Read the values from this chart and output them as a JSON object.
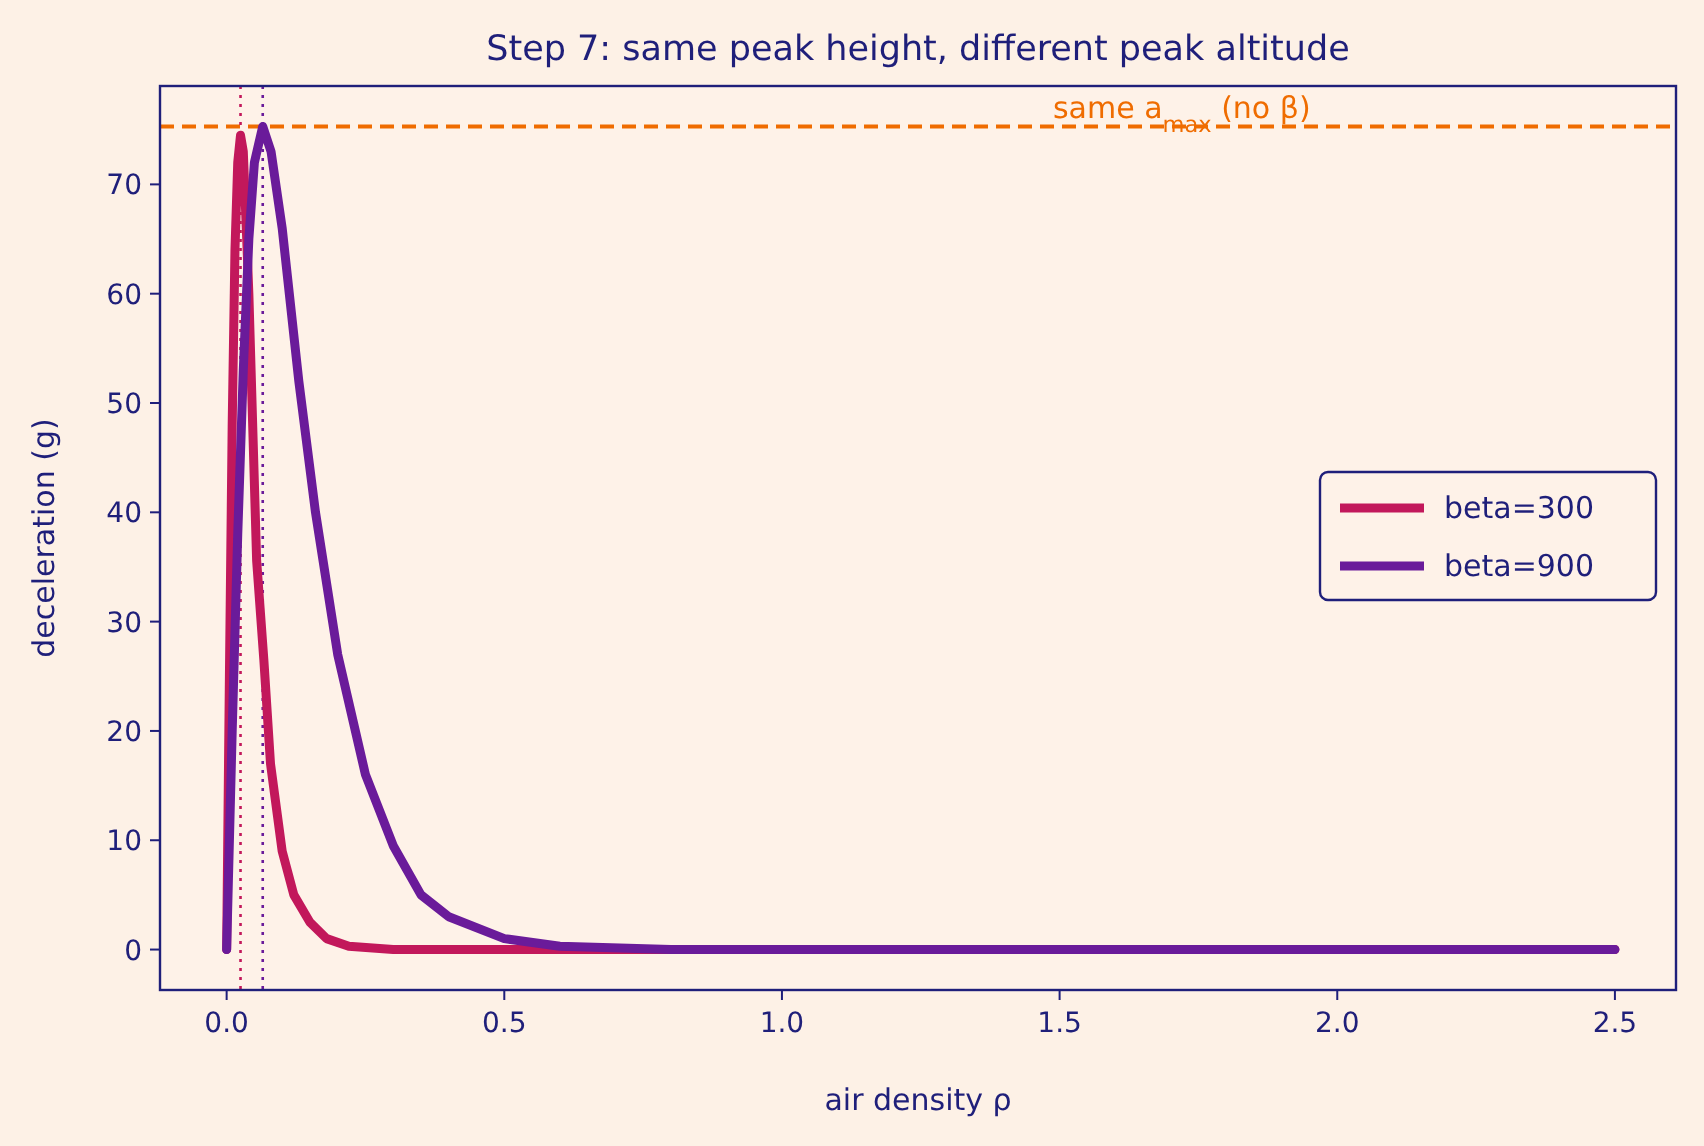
{
  "chart_data": {
    "type": "line",
    "title": "Step 7: same peak height, different peak altitude",
    "xlabel": "air density ρ",
    "ylabel": "deceleration (g)",
    "xlim": [
      -0.12,
      2.61
    ],
    "ylim": [
      -3.7,
      79
    ],
    "xticks": [
      {
        "value": 0,
        "label": "0.0"
      },
      0.5,
      {
        "value": 1,
        "label": "1.0"
      },
      1.5,
      {
        "value": 2,
        "label": "2.0"
      },
      2.5
    ],
    "yticks": [
      0,
      10,
      20,
      30,
      40,
      50,
      60,
      70
    ],
    "grid": false,
    "legend": "right",
    "line_style": "solid",
    "series": [
      {
        "name": "beta=300",
        "color": "#c2185b",
        "x": [
          0,
          0.005,
          0.01,
          0.015,
          0.02,
          0.025,
          0.03,
          0.04,
          0.054,
          0.067,
          0.079,
          0.1,
          0.121,
          0.15,
          0.18,
          0.22,
          0.3,
          0.5,
          1,
          1.5,
          2,
          2.5
        ],
        "values": [
          0,
          25,
          48,
          64,
          72,
          74.5,
          73,
          60,
          35.6,
          26.5,
          17,
          9,
          5,
          2.5,
          1,
          0.3,
          0,
          0,
          0,
          0,
          0,
          0
        ]
      },
      {
        "name": "beta=900",
        "color": "#6a1b9a",
        "x": [
          0,
          0.01,
          0.02,
          0.03,
          0.04,
          0.05,
          0.065,
          0.08,
          0.1,
          0.13,
          0.16,
          0.2,
          0.25,
          0.3,
          0.35,
          0.4,
          0.5,
          0.6,
          0.8,
          1,
          1.5,
          2,
          2.5
        ],
        "values": [
          0,
          20,
          38,
          53,
          65,
          72,
          75.3,
          73,
          66,
          52,
          40,
          27,
          16,
          9.5,
          5,
          3,
          1,
          0.3,
          0,
          0,
          0,
          0,
          0
        ]
      }
    ],
    "ref_lines": [
      {
        "axis": "y",
        "value": 75.3,
        "label": "same a$_{max}$ (no β)",
        "color": "#ef6c00",
        "line_style": "dashed"
      },
      {
        "axis": "x",
        "value": 0.025,
        "color": "#c2185b",
        "line_style": "dotted"
      },
      {
        "axis": "x",
        "value": 0.065,
        "color": "#6a1b9a",
        "line_style": "dotted"
      }
    ]
  }
}
